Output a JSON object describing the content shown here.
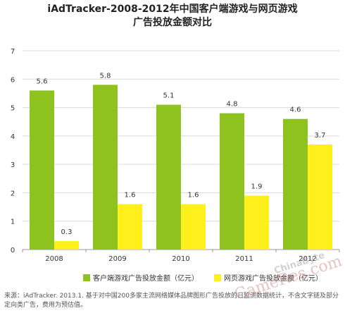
{
  "chart_data": {
    "type": "bar",
    "title_line1": "iAdTracker-2008-2012年中国客户端游戏与网页游戏",
    "title_line2": "广告投放金额对比",
    "categories": [
      "2008",
      "2009",
      "2010",
      "2011",
      "2012"
    ],
    "series": [
      {
        "name": "客户端游戏广告投放金额（亿元）",
        "values": [
          5.6,
          5.8,
          5.1,
          4.8,
          4.6
        ],
        "color": "#8DC21F"
      },
      {
        "name": "网页游戏广告投放金额（亿元）",
        "values": [
          0.3,
          1.6,
          1.6,
          1.9,
          3.7
        ],
        "color": "#FFEF1A"
      }
    ],
    "y_ticks": [
      "0",
      "1",
      "2",
      "3",
      "4",
      "5",
      "6",
      "7"
    ],
    "ylim": [
      0,
      7
    ],
    "grid": true,
    "legend_position": "bottom"
  },
  "source_note": "来源：iAdTracker. 2013.1. 基于对中国200多家主流网络媒体品牌图形广告投放的日监测数据统计，不含文字链及部分定向类广告，费用为预估值。",
  "watermark_text": "GameRes.com",
  "watermark_text2": "ChinaByte"
}
